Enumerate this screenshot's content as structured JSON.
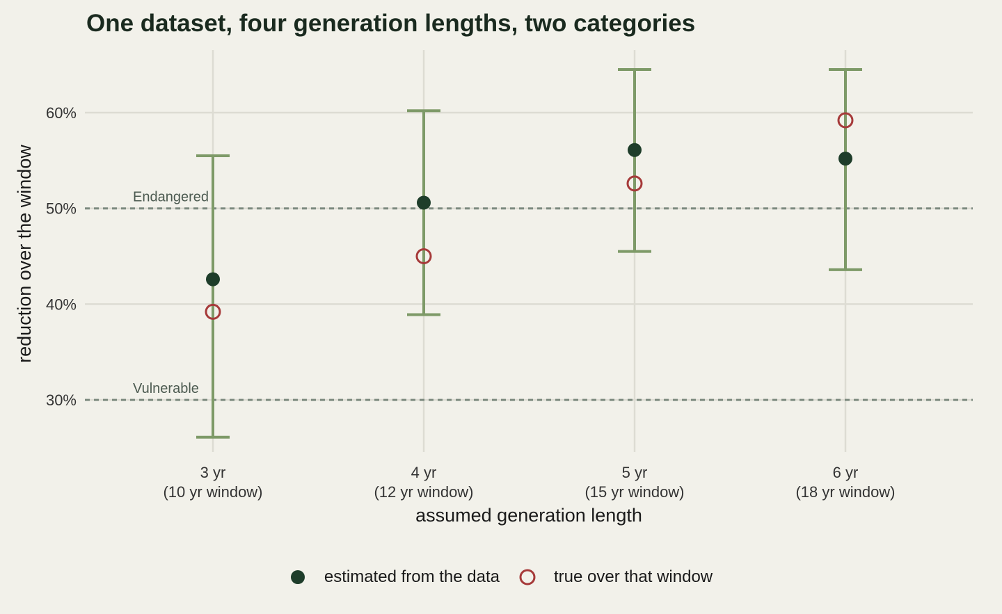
{
  "chart_data": {
    "type": "scatter",
    "title": "One dataset, four generation lengths, two categories",
    "xlabel": "assumed generation length",
    "ylabel": "reduction over the window",
    "categories": [
      [
        "3 yr",
        "(10 yr window)"
      ],
      [
        "4 yr",
        "(12 yr window)"
      ],
      [
        "5 yr",
        "(15 yr window)"
      ],
      [
        "6 yr",
        "(18 yr window)"
      ]
    ],
    "ylim": [
      0.245,
      0.66
    ],
    "y_ticks": [
      0.3,
      0.4,
      0.5,
      0.6
    ],
    "y_tick_labels": [
      "30%",
      "40%",
      "50%",
      "60%"
    ],
    "grid": true,
    "series": [
      {
        "name": "estimated from the data",
        "marker": "filled-circle",
        "color": "#1e3d2a",
        "values": [
          0.426,
          0.506,
          0.561,
          0.552
        ],
        "error_low": [
          0.261,
          0.389,
          0.455,
          0.436
        ],
        "error_high": [
          0.555,
          0.602,
          0.645,
          0.645
        ]
      },
      {
        "name": "true over that window",
        "marker": "open-circle",
        "color": "#a63a3a",
        "values": [
          0.392,
          0.45,
          0.526,
          0.592
        ]
      }
    ],
    "reference_lines": [
      {
        "label": "Endangered",
        "value": 0.5
      },
      {
        "label": "Vulnerable",
        "value": 0.3
      }
    ],
    "error_bar_color": "#7e9a68",
    "legend_position": "bottom-center"
  }
}
